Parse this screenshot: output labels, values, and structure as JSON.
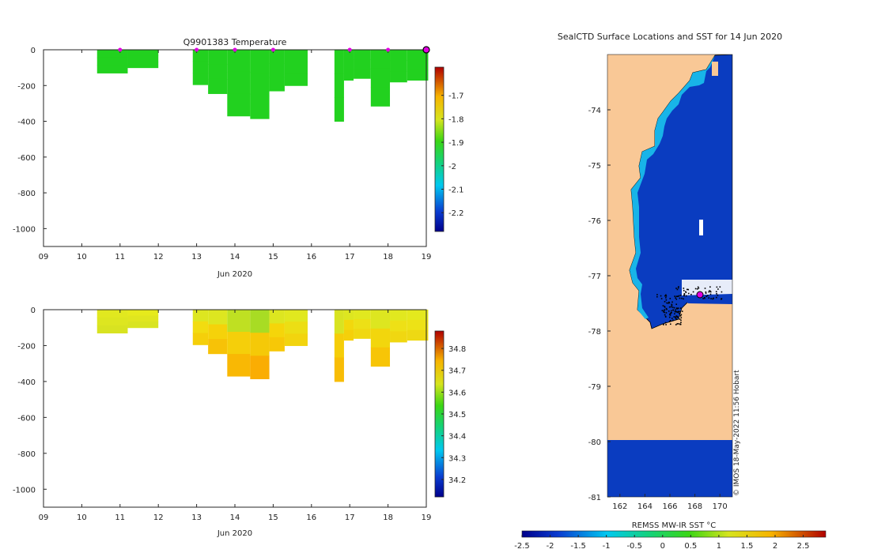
{
  "figure": {
    "watermark": "© IMOS 18-May-2022 11:56 Hobart"
  },
  "colors": {
    "land": "#f9c896",
    "sea_ice": "#0a3cc0",
    "profile_marker": "#e000e0",
    "temp_fill": "#1fd31f"
  },
  "chart_data": [
    {
      "id": "temperature",
      "type": "heatmap",
      "title": "Q9901383  Temperature",
      "xlabel": "Jun 2020",
      "ylabel": "",
      "xlim": [
        9,
        19
      ],
      "ylim": [
        -1100,
        0
      ],
      "x_ticks": [
        9,
        10,
        11,
        12,
        13,
        14,
        15,
        16,
        17,
        18,
        19
      ],
      "x_tick_labels": [
        "09",
        "10",
        "11",
        "12",
        "13",
        "14",
        "15",
        "16",
        "17",
        "18",
        "19"
      ],
      "y_ticks": [
        0,
        -200,
        -400,
        -600,
        -800,
        -1000
      ],
      "y_tick_labels": [
        "0",
        "-200",
        "-400",
        "-600",
        "-800",
        "-1000"
      ],
      "colorbar": {
        "range": [
          -2.28,
          -1.58
        ],
        "ticks": [
          -1.7,
          -1.8,
          -1.9,
          -2,
          -2.1,
          -2.2
        ],
        "tick_labels": [
          "-1.7",
          "-1.8",
          "-1.9",
          "-2",
          "-2.1",
          "-2.2"
        ]
      },
      "profiles": [
        {
          "x0": 10.4,
          "x1": 11.2,
          "depth": 130,
          "colors": [
            "#22d11f",
            "#22d11f",
            "#22d11f"
          ]
        },
        {
          "x0": 11.2,
          "x1": 12.0,
          "depth": 100,
          "colors": [
            "#22d11f",
            "#22d11f",
            "#22d11f"
          ]
        },
        {
          "x0": 12.9,
          "x1": 13.3,
          "depth": 195,
          "colors": [
            "#22d11f",
            "#22d11f",
            "#22d11f"
          ]
        },
        {
          "x0": 13.3,
          "x1": 13.8,
          "depth": 245,
          "colors": [
            "#22d11f",
            "#22d11f",
            "#22d11f"
          ]
        },
        {
          "x0": 13.8,
          "x1": 14.4,
          "depth": 370,
          "colors": [
            "#22d11f",
            "#22d11f",
            "#22d11f"
          ]
        },
        {
          "x0": 14.4,
          "x1": 14.9,
          "depth": 385,
          "colors": [
            "#22d11f",
            "#22d11f",
            "#22d11f"
          ]
        },
        {
          "x0": 14.9,
          "x1": 15.3,
          "depth": 230,
          "colors": [
            "#22d11f",
            "#22d11f",
            "#22d11f"
          ]
        },
        {
          "x0": 15.3,
          "x1": 15.9,
          "depth": 200,
          "colors": [
            "#22d11f",
            "#22d11f",
            "#22d11f"
          ]
        },
        {
          "x0": 16.6,
          "x1": 16.85,
          "depth": 400,
          "colors": [
            "#22d11f",
            "#22d11f",
            "#22d11f"
          ]
        },
        {
          "x0": 16.85,
          "x1": 17.1,
          "depth": 170,
          "colors": [
            "#22d11f",
            "#22d11f",
            "#22d11f"
          ]
        },
        {
          "x0": 17.1,
          "x1": 17.55,
          "depth": 160,
          "colors": [
            "#22d11f",
            "#22d11f",
            "#22d11f"
          ]
        },
        {
          "x0": 17.55,
          "x1": 18.05,
          "depth": 315,
          "colors": [
            "#22d11f",
            "#22d11f",
            "#22d11f"
          ]
        },
        {
          "x0": 18.05,
          "x1": 18.5,
          "depth": 180,
          "colors": [
            "#22d11f",
            "#22d11f",
            "#22d11f"
          ]
        },
        {
          "x0": 18.5,
          "x1": 19.05,
          "depth": 170,
          "colors": [
            "#22d11f",
            "#22d11f",
            "#22d11f"
          ]
        }
      ],
      "markers": [
        11,
        13,
        14,
        15,
        17,
        18,
        19
      ]
    },
    {
      "id": "salinity",
      "type": "heatmap",
      "title": "",
      "xlabel": "Jun 2020",
      "ylabel": "",
      "xlim": [
        9,
        19
      ],
      "ylim": [
        -1100,
        0
      ],
      "x_ticks": [
        9,
        10,
        11,
        12,
        13,
        14,
        15,
        16,
        17,
        18,
        19
      ],
      "x_tick_labels": [
        "09",
        "10",
        "11",
        "12",
        "13",
        "14",
        "15",
        "16",
        "17",
        "18",
        "19"
      ],
      "y_ticks": [
        0,
        -200,
        -400,
        -600,
        -800,
        -1000
      ],
      "y_tick_labels": [
        "0",
        "-200",
        "-400",
        "-600",
        "-800",
        "-1000"
      ],
      "colorbar": {
        "range": [
          34.12,
          34.88
        ],
        "ticks": [
          34.8,
          34.7,
          34.6,
          34.5,
          34.4,
          34.3,
          34.2
        ],
        "tick_labels": [
          "34.8",
          "34.7",
          "34.6",
          "34.5",
          "34.4",
          "34.3",
          "34.2"
        ]
      },
      "profiles": [
        {
          "x0": 10.4,
          "x1": 11.2,
          "depth": 130,
          "colors": [
            "#e1e81f",
            "#dde620",
            "#d8e321"
          ]
        },
        {
          "x0": 11.2,
          "x1": 12.0,
          "depth": 100,
          "colors": [
            "#e6ea1c",
            "#e0e61f",
            "#d9e421"
          ]
        },
        {
          "x0": 12.9,
          "x1": 13.3,
          "depth": 195,
          "colors": [
            "#dde620",
            "#f2dc10",
            "#f5cf0a"
          ]
        },
        {
          "x0": 13.3,
          "x1": 13.8,
          "depth": 245,
          "colors": [
            "#dde620",
            "#f5d20a",
            "#f7c207"
          ]
        },
        {
          "x0": 13.8,
          "x1": 14.4,
          "depth": 370,
          "colors": [
            "#bfe022",
            "#f5cf0a",
            "#f9b804"
          ]
        },
        {
          "x0": 14.4,
          "x1": 14.9,
          "depth": 385,
          "colors": [
            "#a8dc24",
            "#f5c908",
            "#faad03"
          ]
        },
        {
          "x0": 14.9,
          "x1": 15.3,
          "depth": 230,
          "colors": [
            "#dde620",
            "#f5d50a",
            "#f7c807"
          ]
        },
        {
          "x0": 15.3,
          "x1": 15.9,
          "depth": 200,
          "colors": [
            "#e1e81f",
            "#ecde14",
            "#f2d40e"
          ]
        },
        {
          "x0": 16.6,
          "x1": 16.85,
          "depth": 400,
          "colors": [
            "#d8e322",
            "#f5cd09",
            "#f8bd06"
          ]
        },
        {
          "x0": 16.85,
          "x1": 17.1,
          "depth": 170,
          "colors": [
            "#dde620",
            "#f2d80d",
            "#f5d00a"
          ]
        },
        {
          "x0": 17.1,
          "x1": 17.55,
          "depth": 160,
          "colors": [
            "#e1e81f",
            "#ede016",
            "#f0d811"
          ]
        },
        {
          "x0": 17.55,
          "x1": 18.05,
          "depth": 315,
          "colors": [
            "#dde620",
            "#f2d60d",
            "#f7c507"
          ]
        },
        {
          "x0": 18.05,
          "x1": 18.5,
          "depth": 180,
          "colors": [
            "#e1e81f",
            "#eee016",
            "#f0d711"
          ]
        },
        {
          "x0": 18.5,
          "x1": 19.05,
          "depth": 170,
          "colors": [
            "#e4e91d",
            "#ede216",
            "#eed913"
          ]
        }
      ],
      "markers": []
    },
    {
      "id": "sst-map",
      "type": "heatmap",
      "title": "SealCTD Surface Locations and SST for 14 Jun 2020",
      "xlabel": "",
      "ylabel": "",
      "xlim": [
        161,
        171
      ],
      "ylim": [
        -81,
        -73
      ],
      "x_ticks": [
        162,
        164,
        166,
        168,
        170
      ],
      "x_tick_labels": [
        "162",
        "164",
        "166",
        "168",
        "170"
      ],
      "y_ticks": [
        -74,
        -75,
        -76,
        -77,
        -78,
        -79,
        -80,
        -81
      ],
      "y_tick_labels": [
        "-74",
        "-75",
        "-76",
        "-77",
        "-78",
        "-79",
        "-80",
        "-81"
      ],
      "colorbar": {
        "label": "REMSS MW-IR SST °C",
        "range": [
          -2.5,
          2.9
        ],
        "ticks": [
          -2.5,
          -2,
          -1.5,
          -1,
          -0.5,
          0,
          0.5,
          1,
          1.5,
          2,
          2.5
        ],
        "tick_labels": [
          "-2.5",
          "-2",
          "-1.5",
          "-1",
          "-0.5",
          "0",
          "0.5",
          "1",
          "1.5",
          "2",
          "2.5"
        ]
      },
      "latest_position": {
        "lon": 168.3,
        "lat": -77.38
      }
    }
  ]
}
